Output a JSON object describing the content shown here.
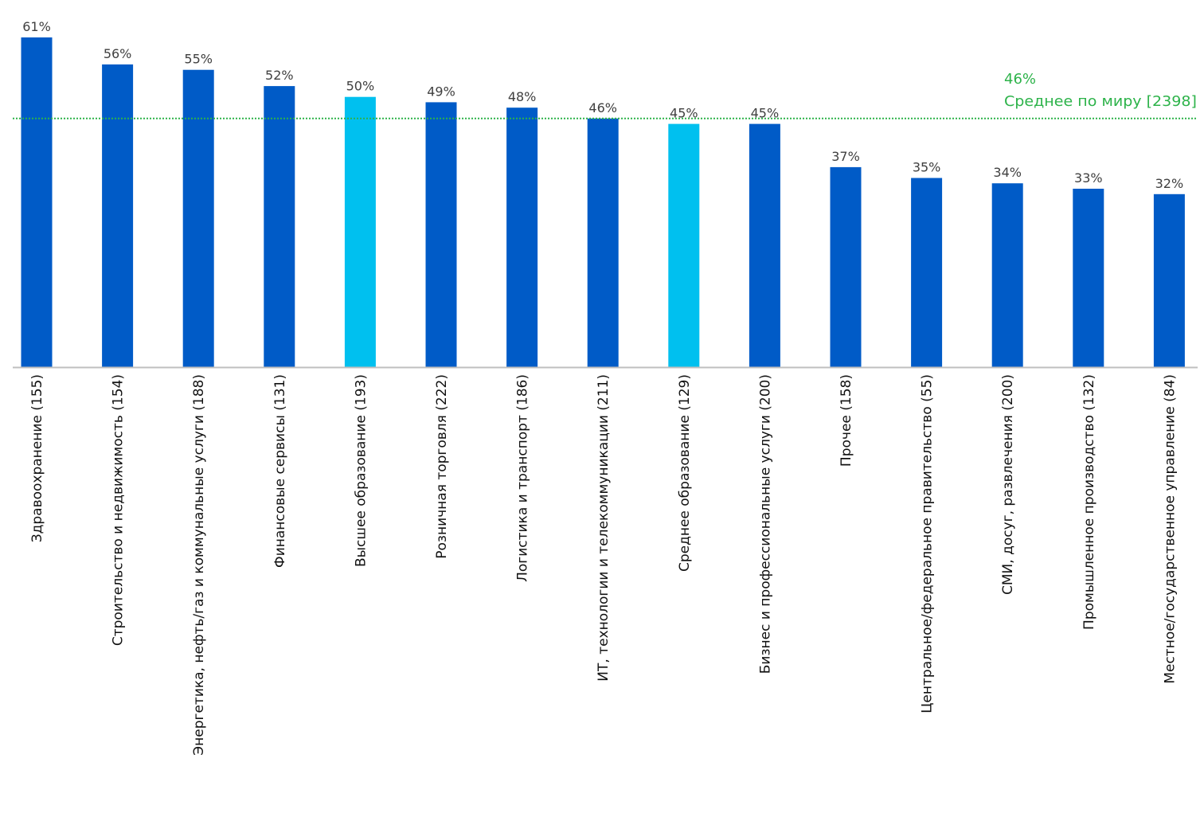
{
  "chart_data": {
    "type": "bar",
    "categories": [
      "Здравоохранение (155)",
      "Строительство и недвижимость (154)",
      "Энергетика, нефть/газ и коммунальные услуги (188)",
      "Финансовые сервисы (131)",
      "Высшее образование (193)",
      "Розничная торговля (222)",
      "Логистика и транспорт (186)",
      "ИТ, технологии и телекоммуникации (211)",
      "Среднее образование (129)",
      "Бизнес и профессиональные услуги (200)",
      "Прочее (158)",
      "Центральное/федеральное правительство (55)",
      "СМИ, досуг, развлечения (200)",
      "Промышленное производство (132)",
      "Местное/государственное управление (84)"
    ],
    "values": [
      61,
      56,
      55,
      52,
      50,
      49,
      48,
      46,
      45,
      45,
      37,
      35,
      34,
      33,
      32
    ],
    "value_labels": [
      "61%",
      "56%",
      "55%",
      "52%",
      "50%",
      "49%",
      "48%",
      "46%",
      "45%",
      "45%",
      "37%",
      "35%",
      "34%",
      "33%",
      "32%"
    ],
    "highlighted": [
      false,
      false,
      false,
      false,
      true,
      false,
      false,
      false,
      true,
      false,
      false,
      false,
      false,
      false,
      false
    ],
    "ylim": [
      0,
      61
    ],
    "average": {
      "value": 46,
      "value_label": "46%",
      "label": "Среднее по миру [2398]"
    },
    "title": "",
    "xlabel": "",
    "ylabel": "",
    "grid": false,
    "colors": {
      "bar": "#005bc7",
      "bar_highlight": "#00c0ef",
      "average_line": "#2db34a",
      "axis": "#bfbfbf"
    }
  }
}
